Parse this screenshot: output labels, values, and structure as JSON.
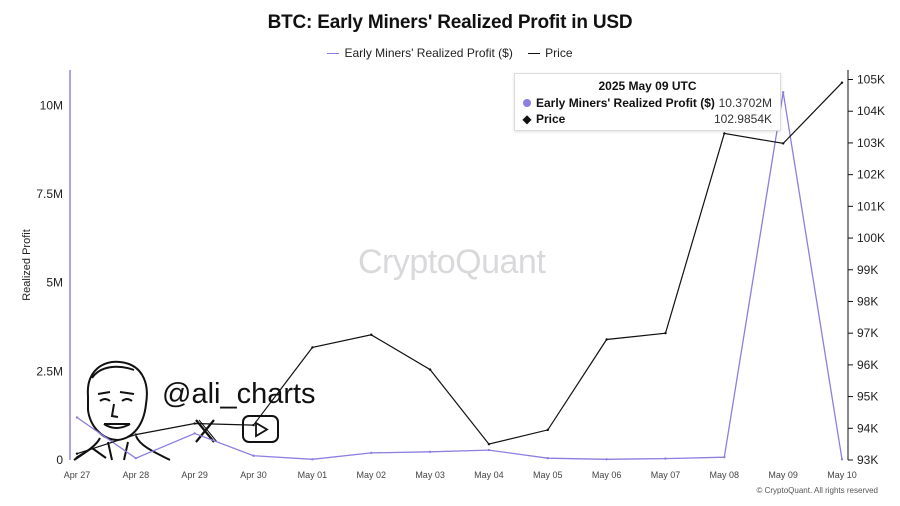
{
  "title": "BTC: Early Miners' Realized Profit in USD",
  "legend": {
    "series1_label": "Early Miners' Realized Profit ($)",
    "series2_label": "Price"
  },
  "watermark": "CryptoQuant",
  "handle": "@ali_charts",
  "footer": "© CryptoQuant. All rights reserved",
  "tooltip": {
    "date": "2025 May 09 UTC",
    "row1_label": "Early Miners' Realized Profit ($)",
    "row1_value": "10.3702M",
    "row2_label": "Price",
    "row2_value": "102.9854K"
  },
  "colors": {
    "profit": "#8b7fe0",
    "price": "#111111",
    "axis": "#8b7fe0"
  },
  "icons": [
    "x-logo-icon",
    "youtube-play-icon",
    "avatar-illustration"
  ],
  "chart_data": {
    "type": "line",
    "title": "BTC: Early Miners' Realized Profit in USD",
    "x": [
      "Apr 27",
      "Apr 28",
      "Apr 29",
      "Apr 30",
      "May 01",
      "May 02",
      "May 03",
      "May 04",
      "May 05",
      "May 06",
      "May 07",
      "May 08",
      "May 09",
      "May 10"
    ],
    "left_axis": {
      "label": "Realized Profit",
      "ylim": [
        0,
        11000000
      ],
      "ticks": [
        0,
        2500000,
        5000000,
        7500000,
        10000000
      ],
      "tick_labels": [
        "0",
        "2.5M",
        "5M",
        "7.5M",
        "10M"
      ]
    },
    "right_axis": {
      "ylim": [
        93000,
        105300
      ],
      "ticks": [
        93000,
        94000,
        95000,
        96000,
        97000,
        98000,
        99000,
        100000,
        101000,
        102000,
        103000,
        104000,
        105000
      ],
      "tick_labels": [
        "93K",
        "94K",
        "95K",
        "96K",
        "97K",
        "98K",
        "99K",
        "100K",
        "101K",
        "102K",
        "103K",
        "104K",
        "105K"
      ]
    },
    "series": [
      {
        "name": "Early Miners' Realized Profit ($)",
        "axis": "left",
        "values": [
          1200000,
          50000,
          750000,
          120000,
          20000,
          200000,
          230000,
          280000,
          50000,
          20000,
          40000,
          80000,
          10370200,
          20000
        ]
      },
      {
        "name": "Price",
        "axis": "right",
        "values": [
          93200,
          93800,
          94150,
          94100,
          96550,
          96950,
          95850,
          93500,
          93950,
          96800,
          97000,
          103300,
          102985,
          104900
        ]
      }
    ],
    "grid": false,
    "legend_position": "top-center"
  }
}
